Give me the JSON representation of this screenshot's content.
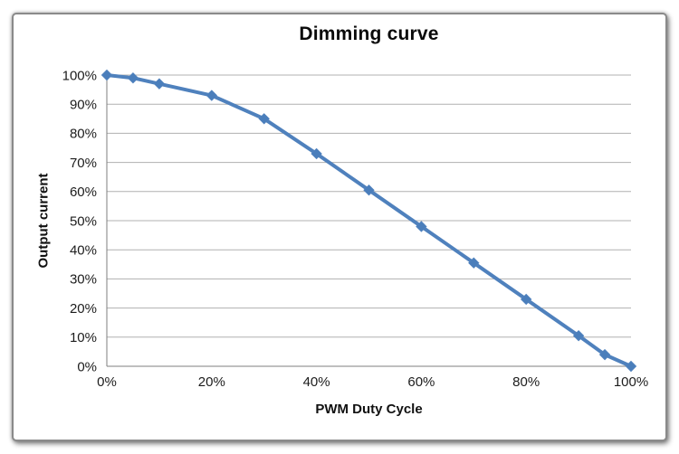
{
  "chart_data": {
    "type": "line",
    "title": "Dimming curve",
    "xlabel": "PWM Duty Cycle",
    "ylabel": "Output current",
    "x": [
      0,
      5,
      10,
      20,
      30,
      40,
      50,
      60,
      70,
      80,
      90,
      95,
      100
    ],
    "y": [
      100,
      99,
      97,
      93,
      85,
      73,
      60.5,
      48,
      35.5,
      23,
      10.5,
      4,
      0
    ],
    "xlim": [
      0,
      100
    ],
    "ylim": [
      0,
      100
    ],
    "x_ticks": [
      0,
      20,
      40,
      60,
      80,
      100
    ],
    "x_tick_labels": [
      "0%",
      "20%",
      "40%",
      "60%",
      "80%",
      "100%"
    ],
    "y_ticks": [
      0,
      10,
      20,
      30,
      40,
      50,
      60,
      70,
      80,
      90,
      100
    ],
    "y_tick_labels": [
      "0%",
      "10%",
      "20%",
      "30%",
      "40%",
      "50%",
      "60%",
      "70%",
      "80%",
      "90%",
      "100%"
    ],
    "grid": "horizontal",
    "legend": "none",
    "marker": "diamond",
    "colors": {
      "line": "#4f81bd",
      "marker": "#4a7ebb",
      "grid": "#b0b0b0",
      "axis": "#7f7f7f",
      "tick_text": "#1c1c1c",
      "title_text": "#0a0a0a",
      "frame_border": "#8a8a8a"
    }
  }
}
